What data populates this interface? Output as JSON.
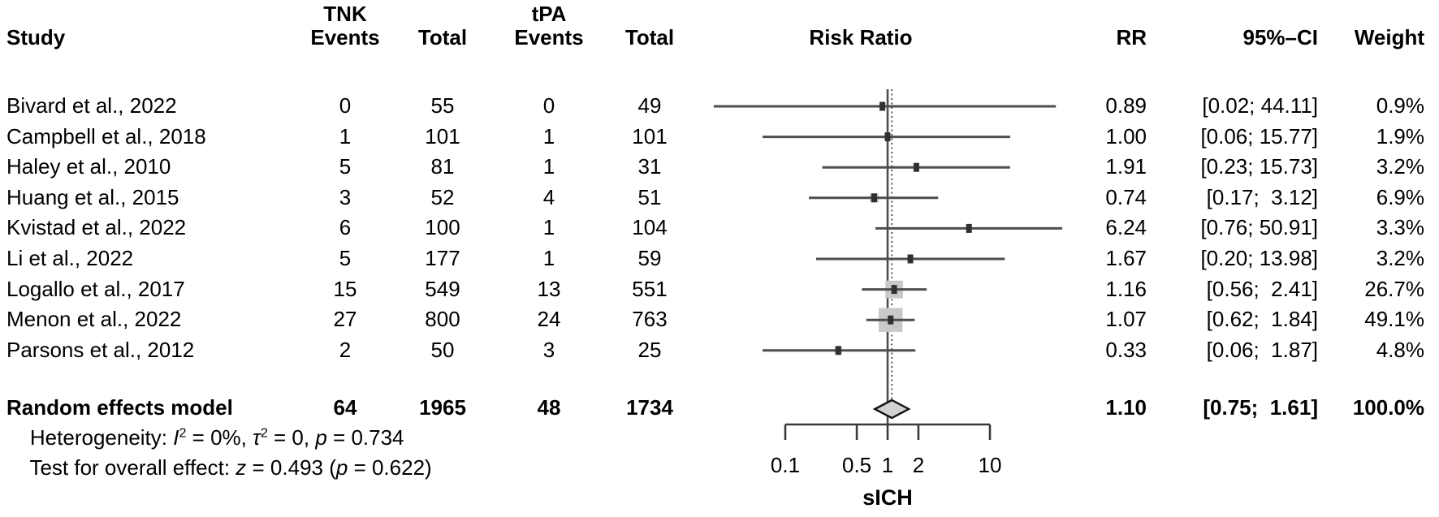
{
  "header": {
    "study": "Study",
    "tnk_group": "TNK",
    "tpa_group": "tPA",
    "events": "Events",
    "total": "Total",
    "risk_ratio": "Risk Ratio",
    "rr": "RR",
    "ci": "95%–CI",
    "weight": "Weight"
  },
  "footnotes": {
    "heterogeneity": {
      "prefix": "Heterogeneity: ",
      "i_sym": "I",
      "i_sup": "2",
      "seg1": " = 0%, ",
      "tau_sym": "τ",
      "tau_sup": "2",
      "seg2": " = 0, ",
      "p_sym": "p",
      "seg3": " = 0.734"
    },
    "overall_effect": {
      "prefix": "Test for overall effect: ",
      "z_sym": "z",
      "seg1": " = 0.493 (",
      "p_sym": "p",
      "seg2": " = 0.622)"
    }
  },
  "chart_data": {
    "type": "forest",
    "effect_measure": "RR",
    "ref_line": 1.0,
    "pooled_estimate": 1.1,
    "x_axis": {
      "scale": "log",
      "range": [
        0.1,
        10
      ],
      "ticks": [
        0.1,
        0.5,
        1,
        2,
        10
      ],
      "tick_labels": [
        "0.1",
        "0.5",
        "1",
        "2",
        "10"
      ],
      "label": "sICH"
    },
    "studies": [
      {
        "name": "Bivard et al., 2022",
        "tnk_events": "0",
        "tnk_total": "55",
        "tpa_events": "0",
        "tpa_total": "49",
        "rr": 0.89,
        "ci_lo": 0.02,
        "ci_hi": 44.11,
        "weight_pct": 0.9,
        "rr_text": "0.89",
        "ci_text": "[0.02; 44.11]",
        "weight_text": "0.9%"
      },
      {
        "name": "Campbell et al., 2018",
        "tnk_events": "1",
        "tnk_total": "101",
        "tpa_events": "1",
        "tpa_total": "101",
        "rr": 1.0,
        "ci_lo": 0.06,
        "ci_hi": 15.77,
        "weight_pct": 1.9,
        "rr_text": "1.00",
        "ci_text": "[0.06; 15.77]",
        "weight_text": "1.9%"
      },
      {
        "name": "Haley et al., 2010",
        "tnk_events": "5",
        "tnk_total": "81",
        "tpa_events": "1",
        "tpa_total": "31",
        "rr": 1.91,
        "ci_lo": 0.23,
        "ci_hi": 15.73,
        "weight_pct": 3.2,
        "rr_text": "1.91",
        "ci_text": "[0.23; 15.73]",
        "weight_text": "3.2%"
      },
      {
        "name": "Huang et al., 2015",
        "tnk_events": "3",
        "tnk_total": "52",
        "tpa_events": "4",
        "tpa_total": "51",
        "rr": 0.74,
        "ci_lo": 0.17,
        "ci_hi": 3.12,
        "weight_pct": 6.9,
        "rr_text": "0.74",
        "ci_text": "[0.17;  3.12]",
        "weight_text": "6.9%"
      },
      {
        "name": "Kvistad et al., 2022",
        "tnk_events": "6",
        "tnk_total": "100",
        "tpa_events": "1",
        "tpa_total": "104",
        "rr": 6.24,
        "ci_lo": 0.76,
        "ci_hi": 50.91,
        "weight_pct": 3.3,
        "rr_text": "6.24",
        "ci_text": "[0.76; 50.91]",
        "weight_text": "3.3%"
      },
      {
        "name": "Li et al., 2022",
        "tnk_events": "5",
        "tnk_total": "177",
        "tpa_events": "1",
        "tpa_total": "59",
        "rr": 1.67,
        "ci_lo": 0.2,
        "ci_hi": 13.98,
        "weight_pct": 3.2,
        "rr_text": "1.67",
        "ci_text": "[0.20; 13.98]",
        "weight_text": "3.2%"
      },
      {
        "name": "Logallo et al., 2017",
        "tnk_events": "15",
        "tnk_total": "549",
        "tpa_events": "13",
        "tpa_total": "551",
        "rr": 1.16,
        "ci_lo": 0.56,
        "ci_hi": 2.41,
        "weight_pct": 26.7,
        "rr_text": "1.16",
        "ci_text": "[0.56;  2.41]",
        "weight_text": "26.7%"
      },
      {
        "name": "Menon et al., 2022",
        "tnk_events": "27",
        "tnk_total": "800",
        "tpa_events": "24",
        "tpa_total": "763",
        "rr": 1.07,
        "ci_lo": 0.62,
        "ci_hi": 1.84,
        "weight_pct": 49.1,
        "rr_text": "1.07",
        "ci_text": "[0.62;  1.84]",
        "weight_text": "49.1%"
      },
      {
        "name": "Parsons et al., 2012",
        "tnk_events": "2",
        "tnk_total": "50",
        "tpa_events": "3",
        "tpa_total": "25",
        "rr": 0.33,
        "ci_lo": 0.06,
        "ci_hi": 1.87,
        "weight_pct": 4.8,
        "rr_text": "0.33",
        "ci_text": "[0.06;  1.87]",
        "weight_text": "4.8%"
      }
    ],
    "summary": {
      "label": "Random effects model",
      "tnk_events": "64",
      "tnk_total": "1965",
      "tpa_events": "48",
      "tpa_total": "1734",
      "rr": 1.1,
      "ci_lo": 0.75,
      "ci_hi": 1.61,
      "rr_text": "1.10",
      "ci_text": "[0.75;  1.61]",
      "weight_text": "100.0%"
    }
  }
}
